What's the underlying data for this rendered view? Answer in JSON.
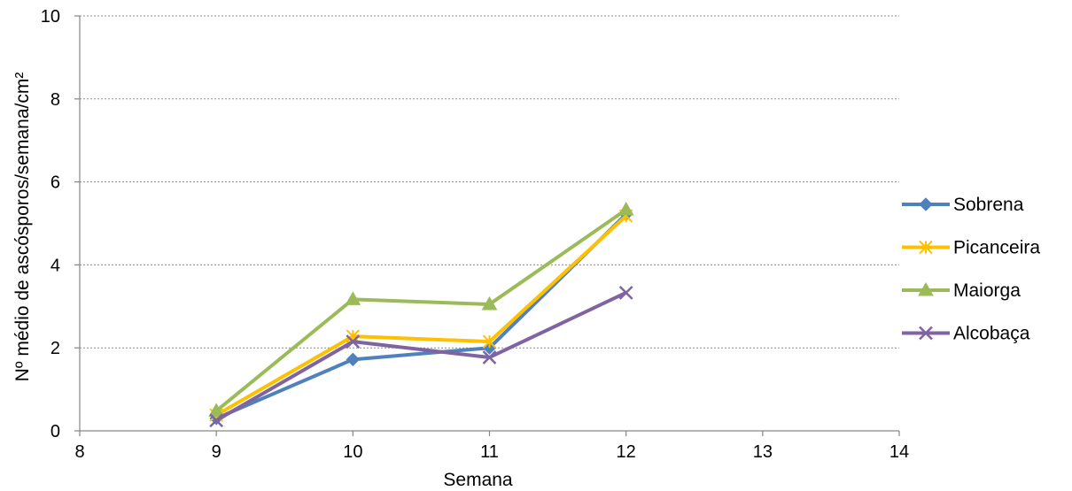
{
  "chart_data": {
    "type": "line",
    "title": "",
    "xlabel": "Semana",
    "ylabel": "Nº médio de ascósporos/semana/cm²",
    "xlim": [
      8,
      14
    ],
    "ylim": [
      0,
      10
    ],
    "x_ticks": [
      "8",
      "9",
      "10",
      "11",
      "12",
      "13",
      "14"
    ],
    "y_ticks": [
      "0",
      "2",
      "4",
      "6",
      "8",
      "10"
    ],
    "grid": "horizontal dotted",
    "legend_position": "right",
    "series": [
      {
        "name": "Sobrena",
        "color": "#4f81bd",
        "marker": "diamond",
        "x": [
          9,
          10,
          11,
          12
        ],
        "y": [
          0.3,
          1.72,
          2.0,
          5.22
        ]
      },
      {
        "name": "Picanceira",
        "color": "#ffc000",
        "marker": "asterisk",
        "x": [
          9,
          10,
          11,
          12
        ],
        "y": [
          0.38,
          2.28,
          2.15,
          5.18
        ]
      },
      {
        "name": "Maiorga",
        "color": "#9bbb59",
        "marker": "triangle",
        "x": [
          9,
          10,
          11,
          12
        ],
        "y": [
          0.48,
          3.17,
          3.05,
          5.33
        ]
      },
      {
        "name": "Alcobaça",
        "color": "#8064a2",
        "marker": "x",
        "x": [
          9,
          10,
          11,
          12
        ],
        "y": [
          0.25,
          2.15,
          1.77,
          3.33
        ]
      }
    ]
  }
}
